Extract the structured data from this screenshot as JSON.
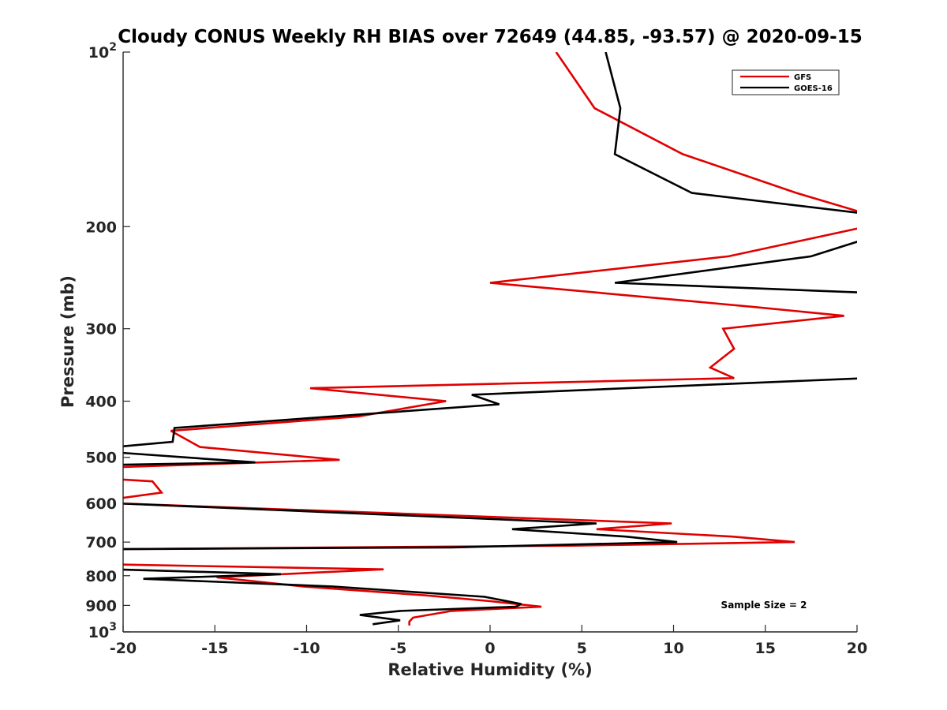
{
  "chart_data": {
    "type": "line",
    "title": "Cloudy CONUS Weekly RH BIAS over 72649 (44.85, -93.57) @ 2020-09-15",
    "xlabel": "Relative Humidity (%)",
    "ylabel": "Pressure (mb)",
    "xlim": [
      -20,
      20
    ],
    "ylim": [
      100,
      1000
    ],
    "y_scale": "log",
    "y_reversed": true,
    "x_ticks": [
      "-20",
      "-15",
      "-10",
      "-5",
      "0",
      "5",
      "10",
      "15",
      "20"
    ],
    "y_ticks": [
      {
        "value": 100,
        "base": "10",
        "exp": "2"
      },
      {
        "value": 200,
        "label": "200"
      },
      {
        "value": 300,
        "label": "300"
      },
      {
        "value": 400,
        "label": "400"
      },
      {
        "value": 500,
        "label": "500"
      },
      {
        "value": 600,
        "label": "600"
      },
      {
        "value": 700,
        "label": "700"
      },
      {
        "value": 800,
        "label": "800"
      },
      {
        "value": 900,
        "label": "900"
      },
      {
        "value": 1000,
        "base": "10",
        "exp": "3"
      }
    ],
    "grid": false,
    "legend_position": "top-right",
    "annotation": "Sample Size = 2",
    "series": [
      {
        "name": "GFS",
        "color": "#e00000",
        "points": [
          [
            3.6,
            100
          ],
          [
            5.7,
            125
          ],
          [
            10.5,
            150
          ],
          [
            16.7,
            175
          ],
          [
            20.5,
            190
          ],
          [
            20.5,
            200
          ],
          [
            13.0,
            225
          ],
          [
            0.0,
            250
          ],
          [
            14.3,
            275
          ],
          [
            19.3,
            285
          ],
          [
            12.7,
            300
          ],
          [
            13.3,
            325
          ],
          [
            12.0,
            350
          ],
          [
            13.3,
            365
          ],
          [
            -9.8,
            380
          ],
          [
            -2.4,
            400
          ],
          [
            -7.2,
            425
          ],
          [
            -17.4,
            450
          ],
          [
            -15.8,
            480
          ],
          [
            -8.2,
            505
          ],
          [
            -20.5,
            520
          ],
          [
            -20.5,
            545
          ],
          [
            -18.4,
            550
          ],
          [
            -17.9,
            575
          ],
          [
            -20.5,
            590
          ],
          [
            -20.5,
            600
          ],
          [
            9.9,
            650
          ],
          [
            5.8,
            665
          ],
          [
            13.2,
            685
          ],
          [
            16.6,
            700
          ],
          [
            4.5,
            710
          ],
          [
            -20.5,
            720
          ],
          [
            -20.5,
            765
          ],
          [
            -5.8,
            780
          ],
          [
            -14.9,
            805
          ],
          [
            -10.2,
            835
          ],
          [
            -3.5,
            865
          ],
          [
            0.0,
            885
          ],
          [
            2.8,
            905
          ],
          [
            -2.1,
            920
          ],
          [
            -4.2,
            945
          ],
          [
            -4.4,
            960
          ],
          [
            -4.4,
            975
          ]
        ]
      },
      {
        "name": "GOES-16",
        "color": "#000000",
        "points": [
          [
            6.3,
            100
          ],
          [
            7.1,
            125
          ],
          [
            6.8,
            150
          ],
          [
            11.0,
            175
          ],
          [
            20.5,
            190
          ],
          [
            20.5,
            210
          ],
          [
            17.5,
            225
          ],
          [
            6.8,
            250
          ],
          [
            20.5,
            260
          ],
          [
            20.5,
            365
          ],
          [
            -1.0,
            390
          ],
          [
            0.5,
            405
          ],
          [
            -17.2,
            445
          ],
          [
            -17.3,
            470
          ],
          [
            -20.5,
            480
          ],
          [
            -20.5,
            490
          ],
          [
            -12.8,
            510
          ],
          [
            -20.5,
            515
          ],
          [
            -20.5,
            600
          ],
          [
            5.8,
            650
          ],
          [
            1.2,
            665
          ],
          [
            7.4,
            685
          ],
          [
            10.2,
            700
          ],
          [
            -2.1,
            715
          ],
          [
            -20.5,
            720
          ],
          [
            -20.5,
            780
          ],
          [
            -11.4,
            795
          ],
          [
            -18.9,
            810
          ],
          [
            -8.6,
            835
          ],
          [
            -0.3,
            870
          ],
          [
            1.7,
            895
          ],
          [
            1.4,
            905
          ],
          [
            -4.9,
            920
          ],
          [
            -7.1,
            935
          ],
          [
            -4.9,
            955
          ],
          [
            -6.4,
            970
          ]
        ]
      }
    ]
  }
}
